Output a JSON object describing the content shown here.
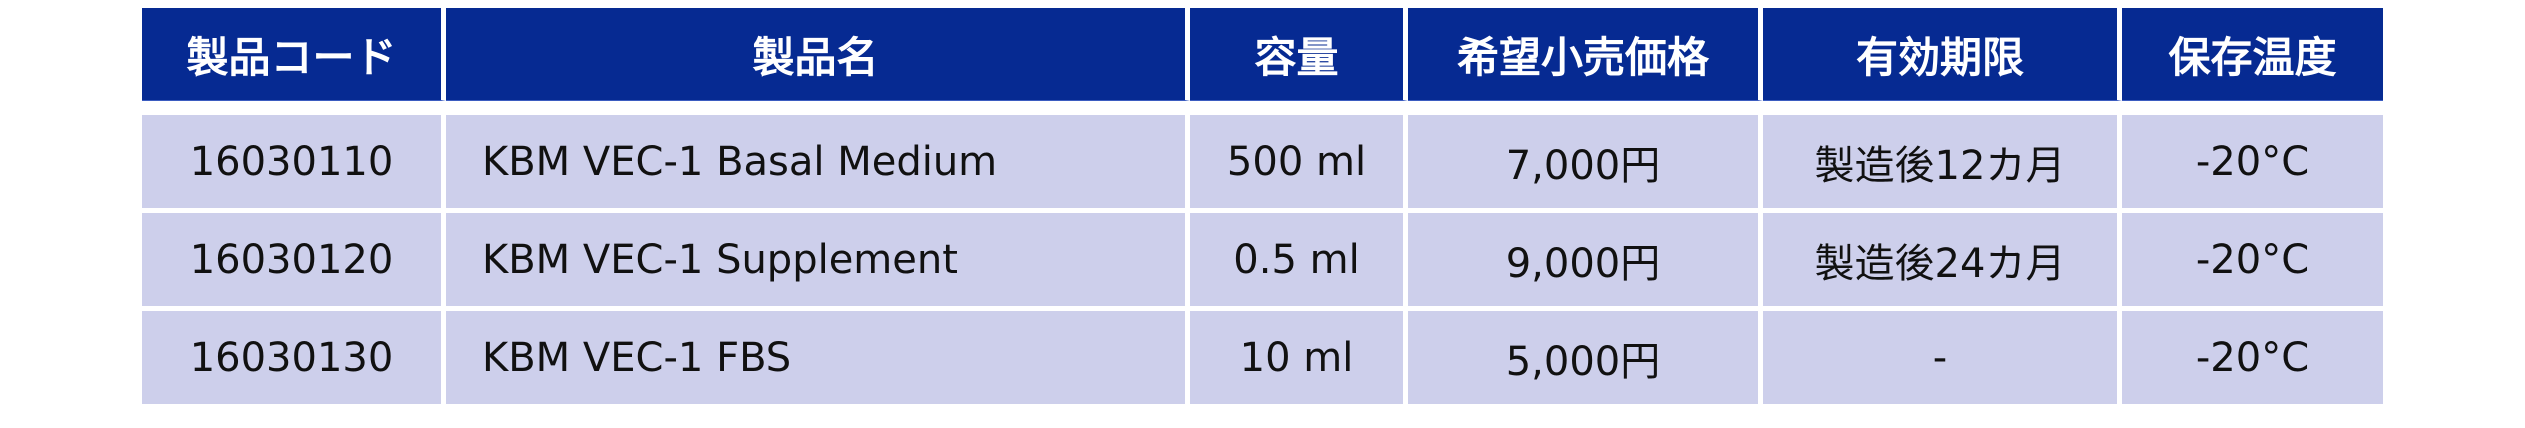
{
  "colors": {
    "header_bg": "#062a92",
    "row_bg": "#cdcfeb"
  },
  "table": {
    "headers": [
      "製品コード",
      "製品名",
      "容量",
      "希望小売価格",
      "有効期限",
      "保存温度"
    ],
    "rows": [
      [
        "16030110",
        "KBM VEC-1 Basal Medium",
        "500 ml",
        "7,000円",
        "製造後12カ月",
        "-20°C"
      ],
      [
        "16030120",
        "KBM VEC-1 Supplement",
        "0.5 ml",
        "9,000円",
        "製造後24カ月",
        "-20°C"
      ],
      [
        "16030130",
        "KBM VEC-1 FBS",
        "10 ml",
        "5,000円",
        "-",
        "-20°C"
      ]
    ]
  }
}
